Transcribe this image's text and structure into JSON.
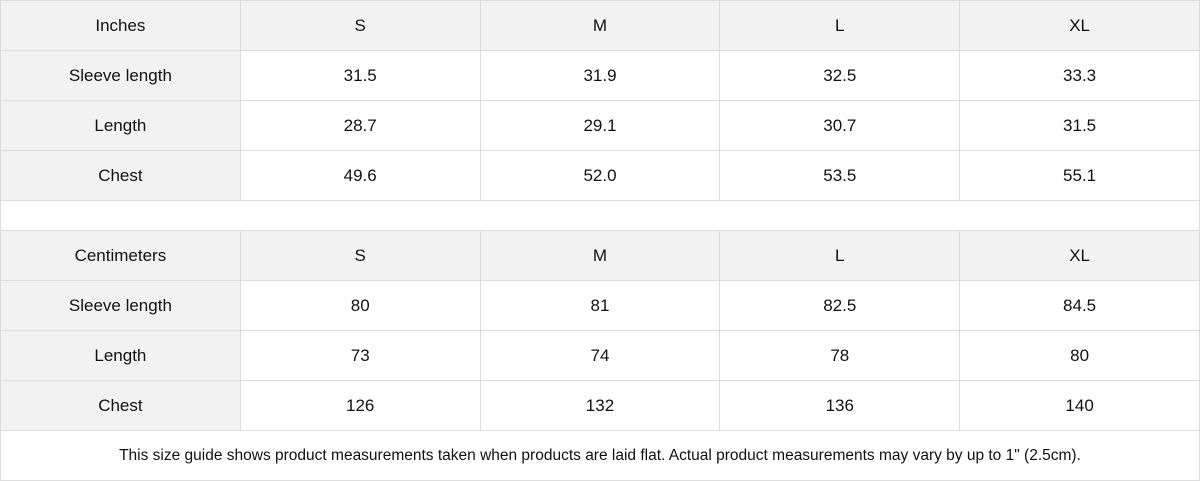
{
  "tables": [
    {
      "unit": "Inches",
      "sizes": [
        "S",
        "M",
        "L",
        "XL"
      ],
      "rows": [
        {
          "label": "Sleeve length",
          "values": [
            "31.5",
            "31.9",
            "32.5",
            "33.3"
          ]
        },
        {
          "label": "Length",
          "values": [
            "28.7",
            "29.1",
            "30.7",
            "31.5"
          ]
        },
        {
          "label": "Chest",
          "values": [
            "49.6",
            "52.0",
            "53.5",
            "55.1"
          ]
        }
      ]
    },
    {
      "unit": "Centimeters",
      "sizes": [
        "S",
        "M",
        "L",
        "XL"
      ],
      "rows": [
        {
          "label": "Sleeve length",
          "values": [
            "80",
            "81",
            "82.5",
            "84.5"
          ]
        },
        {
          "label": "Length",
          "values": [
            "73",
            "74",
            "78",
            "80"
          ]
        },
        {
          "label": "Chest",
          "values": [
            "126",
            "132",
            "136",
            "140"
          ]
        }
      ]
    }
  ],
  "note": "This size guide shows product measurements taken when products are laid flat.  Actual product measurements may vary by up to 1\" (2.5cm).",
  "colors": {
    "header_bg": "#f2f2f2",
    "border": "#dcdcdc"
  }
}
